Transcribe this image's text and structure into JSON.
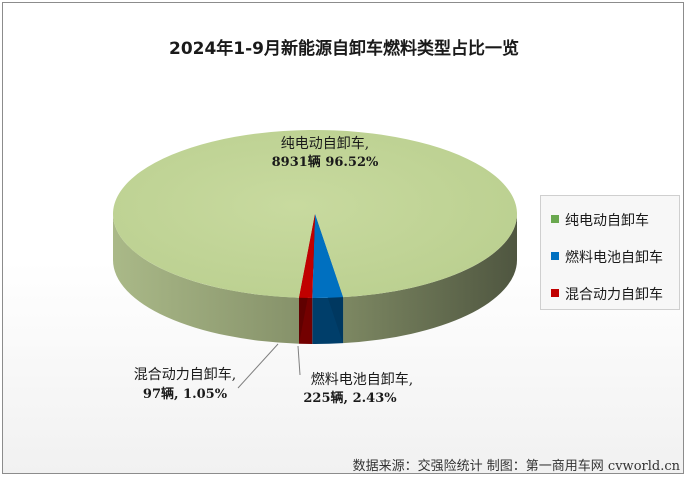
{
  "chart_data": {
    "type": "pie",
    "title": "2024年1-9月新能源自卸车燃料类型占比一览",
    "slices": [
      {
        "name": "纯电动自卸车",
        "value": 8931,
        "percent": 96.52,
        "label_line1": "纯电动自卸车,",
        "label_line2": "8931辆 96.52%",
        "color": "#c3d69b"
      },
      {
        "name": "燃料电池自卸车",
        "value": 225,
        "percent": 2.43,
        "label_line1": "燃料电池自卸车,",
        "label_line2": "225辆, 2.43%",
        "color": "#0070c0"
      },
      {
        "name": "混合动力自卸车",
        "value": 97,
        "percent": 1.05,
        "label_line1": "混合动力自卸车,",
        "label_line2": "97辆, 1.05%",
        "color": "#c00000"
      }
    ],
    "legend_position": "right",
    "style": "3d-pie"
  },
  "legend": {
    "items": [
      {
        "label": "纯电动自卸车",
        "color": "#6aa84f"
      },
      {
        "label": "燃料电池自卸车",
        "color": "#0070c0"
      },
      {
        "label": "混合动力自卸车",
        "color": "#c00000"
      }
    ]
  },
  "source_text": "数据来源：交强险统计  制图：第一商用车网 cvworld.cn"
}
